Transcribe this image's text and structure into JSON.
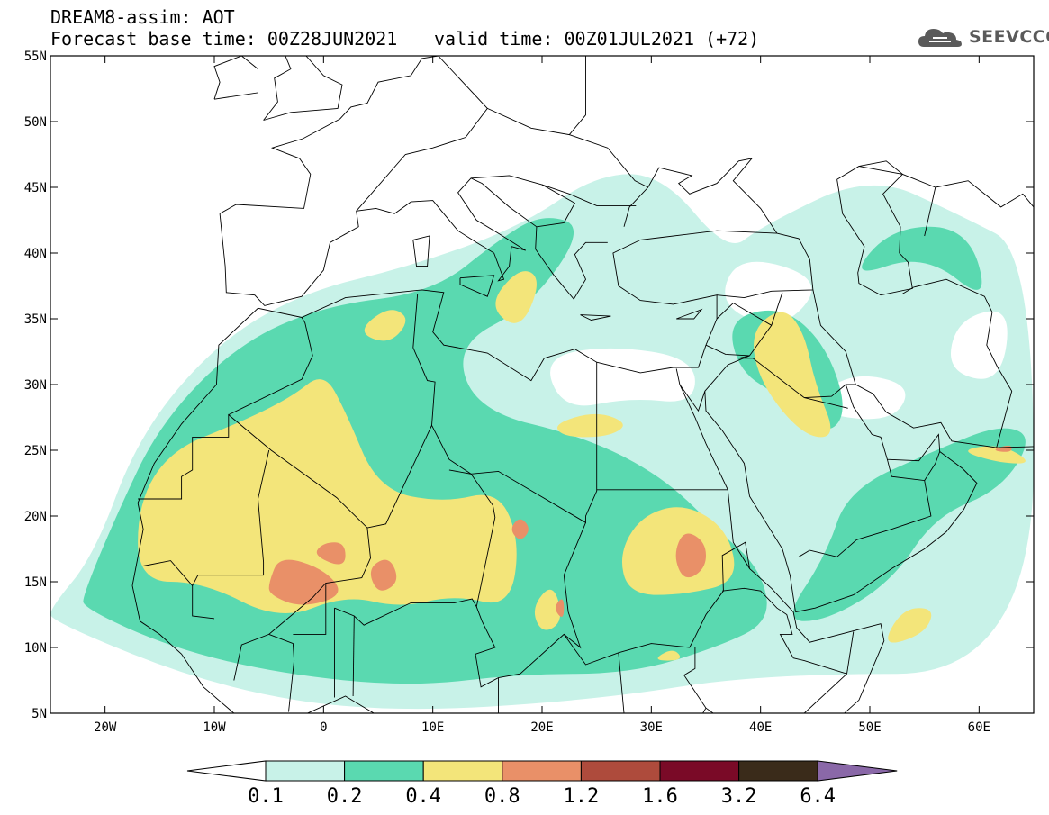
{
  "header": {
    "title": "DREAM8-assim: AOT",
    "base_time": "Forecast base time: 00Z28JUN2021",
    "valid_time": "valid time: 00Z01JUL2021 (+72)"
  },
  "logo": {
    "text": "SEEVCCC",
    "icon": "cloud-logo-icon"
  },
  "map": {
    "lon_range": [
      -25,
      65
    ],
    "lat_range": [
      5,
      55
    ],
    "lat_ticks": [
      {
        "v": 55,
        "label": "55N"
      },
      {
        "v": 50,
        "label": "50N"
      },
      {
        "v": 45,
        "label": "45N"
      },
      {
        "v": 40,
        "label": "40N"
      },
      {
        "v": 35,
        "label": "35N"
      },
      {
        "v": 30,
        "label": "30N"
      },
      {
        "v": 25,
        "label": "25N"
      },
      {
        "v": 20,
        "label": "20N"
      },
      {
        "v": 15,
        "label": "15N"
      },
      {
        "v": 10,
        "label": "10N"
      },
      {
        "v": 5,
        "label": "5N"
      }
    ],
    "lon_ticks": [
      {
        "v": -20,
        "label": "20W"
      },
      {
        "v": -10,
        "label": "10W"
      },
      {
        "v": 0,
        "label": "0"
      },
      {
        "v": 10,
        "label": "10E"
      },
      {
        "v": 20,
        "label": "20E"
      },
      {
        "v": 30,
        "label": "30E"
      },
      {
        "v": 40,
        "label": "40E"
      },
      {
        "v": 50,
        "label": "50E"
      },
      {
        "v": 60,
        "label": "60E"
      }
    ]
  },
  "colorbar": {
    "labels": [
      "0.1",
      "0.2",
      "0.4",
      "0.8",
      "1.2",
      "1.6",
      "3.2",
      "6.4"
    ],
    "colors": [
      "#ffffff",
      "#c8f2e8",
      "#5ad9b0",
      "#f3e57a",
      "#e99068",
      "#ae4b3c",
      "#7a0a27",
      "#3a2b1a",
      "#8a68a8"
    ]
  },
  "fields": {
    "colors": {
      "c1": "#c8f2e8",
      "c2": "#5ad9b0",
      "c3": "#f3e57a",
      "c4": "#e99068",
      "c5": "#ae4b3c"
    },
    "l1": [
      [
        [
          -25,
          13
        ],
        [
          -21,
          17
        ],
        [
          -17,
          26
        ],
        [
          -10,
          33
        ],
        [
          -2,
          37
        ],
        [
          8,
          39
        ],
        [
          18,
          42
        ],
        [
          25,
          46
        ],
        [
          31,
          46
        ],
        [
          37,
          40
        ],
        [
          40,
          42
        ],
        [
          50,
          46
        ],
        [
          58,
          43
        ],
        [
          65,
          40
        ],
        [
          65,
          8
        ],
        [
          40,
          8
        ],
        [
          25,
          6
        ],
        [
          5,
          5
        ],
        [
          -10,
          7
        ],
        [
          -25,
          12
        ]
      ]
    ],
    "l1_holes": [
      [
        [
          22,
          28
        ],
        [
          28,
          29
        ],
        [
          34,
          28.5
        ],
        [
          34,
          32
        ],
        [
          26,
          33
        ],
        [
          20,
          32
        ]
      ],
      [
        [
          44,
          28
        ],
        [
          52,
          27
        ],
        [
          54,
          30
        ],
        [
          48,
          31
        ]
      ],
      [
        [
          58,
          35
        ],
        [
          63,
          36
        ],
        [
          62,
          30
        ],
        [
          57,
          31
        ]
      ],
      [
        [
          36,
          36
        ],
        [
          42,
          34
        ],
        [
          46,
          38
        ],
        [
          38,
          40
        ]
      ]
    ],
    "l2": [
      [
        [
          -22,
          14
        ],
        [
          -19,
          20
        ],
        [
          -15,
          27
        ],
        [
          -8,
          33
        ],
        [
          0,
          36
        ],
        [
          10,
          37
        ],
        [
          16,
          41
        ],
        [
          20,
          43
        ],
        [
          24,
          42
        ],
        [
          19,
          36
        ],
        [
          12,
          33
        ],
        [
          14,
          28
        ],
        [
          24,
          26
        ],
        [
          31,
          23
        ],
        [
          36,
          19
        ],
        [
          40,
          16
        ],
        [
          41,
          12
        ],
        [
          36,
          10
        ],
        [
          28,
          8
        ],
        [
          18,
          8
        ],
        [
          8,
          7
        ],
        [
          -4,
          8
        ],
        [
          -14,
          10
        ],
        [
          -22,
          13
        ]
      ],
      [
        [
          37,
          35
        ],
        [
          42,
          36
        ],
        [
          46,
          33
        ],
        [
          48,
          28
        ],
        [
          46,
          26
        ],
        [
          42,
          29
        ],
        [
          38,
          31
        ]
      ],
      [
        [
          48,
          22
        ],
        [
          56,
          25
        ],
        [
          62,
          27
        ],
        [
          65,
          26
        ],
        [
          62,
          22
        ],
        [
          56,
          20
        ],
        [
          52,
          15
        ],
        [
          46,
          12
        ],
        [
          42,
          12
        ],
        [
          46,
          17
        ]
      ],
      [
        [
          48,
          38
        ],
        [
          55,
          40
        ],
        [
          61,
          36
        ],
        [
          59,
          42
        ],
        [
          52,
          42
        ]
      ],
      [
        [
          22,
          15
        ],
        [
          29,
          12
        ],
        [
          35,
          14
        ],
        [
          40,
          17
        ],
        [
          36,
          13
        ],
        [
          30,
          9
        ],
        [
          22,
          10
        ]
      ]
    ],
    "l3": [
      [
        [
          -17,
          15
        ],
        [
          -17,
          21
        ],
        [
          -14,
          25
        ],
        [
          -8,
          27
        ],
        [
          -3,
          29
        ],
        [
          0,
          31
        ],
        [
          2,
          28
        ],
        [
          5,
          22
        ],
        [
          11,
          21
        ],
        [
          16,
          22
        ],
        [
          18,
          18
        ],
        [
          17,
          13
        ],
        [
          12,
          14
        ],
        [
          7,
          13
        ],
        [
          2,
          14
        ],
        [
          -4,
          12
        ],
        [
          -11,
          15
        ]
      ],
      [
        [
          27,
          17
        ],
        [
          29,
          20
        ],
        [
          33,
          21
        ],
        [
          37,
          19
        ],
        [
          38,
          15
        ],
        [
          33,
          14
        ],
        [
          28,
          14
        ]
      ],
      [
        [
          39,
          34
        ],
        [
          42,
          36
        ],
        [
          44,
          34
        ],
        [
          45,
          30
        ],
        [
          47,
          26
        ],
        [
          44,
          26
        ],
        [
          40,
          30
        ]
      ],
      [
        [
          15,
          36
        ],
        [
          18,
          39
        ],
        [
          20,
          38
        ],
        [
          18,
          34
        ]
      ],
      [
        [
          3,
          34
        ],
        [
          6,
          36
        ],
        [
          8,
          35
        ],
        [
          6,
          33
        ]
      ],
      [
        [
          21,
          27
        ],
        [
          25,
          28
        ],
        [
          28,
          27
        ],
        [
          26,
          26
        ],
        [
          22,
          26
        ]
      ],
      [
        [
          -6,
          26
        ],
        [
          -3,
          28
        ],
        [
          -2,
          26
        ],
        [
          -4,
          24
        ]
      ],
      [
        [
          51,
          10
        ],
        [
          55,
          11
        ],
        [
          56,
          13
        ],
        [
          53,
          13
        ]
      ],
      [
        [
          58,
          25
        ],
        [
          62,
          24
        ],
        [
          65,
          24
        ],
        [
          62,
          25.5
        ]
      ],
      [
        [
          19,
          13
        ],
        [
          21,
          15
        ],
        [
          22,
          12
        ],
        [
          20,
          11
        ]
      ],
      [
        [
          30,
          9
        ],
        [
          32,
          10
        ],
        [
          33,
          9
        ]
      ]
    ],
    "l4": [
      [
        [
          -5,
          15
        ],
        [
          -4,
          17
        ],
        [
          0,
          16
        ],
        [
          2,
          14
        ],
        [
          -2,
          13
        ],
        [
          -5,
          14
        ]
      ],
      [
        [
          -1,
          17
        ],
        [
          0,
          18
        ],
        [
          2,
          18
        ],
        [
          2,
          16
        ]
      ],
      [
        [
          4,
          16
        ],
        [
          6,
          17
        ],
        [
          7,
          15
        ],
        [
          5,
          14
        ]
      ],
      [
        [
          32,
          17
        ],
        [
          33,
          19
        ],
        [
          35,
          18
        ],
        [
          35,
          16
        ],
        [
          33,
          15
        ]
      ],
      [
        [
          17,
          19
        ],
        [
          18,
          20
        ],
        [
          19,
          19
        ],
        [
          18,
          18
        ]
      ],
      [
        [
          21,
          13
        ],
        [
          22,
          14
        ],
        [
          22,
          12
        ]
      ],
      [
        [
          61,
          25
        ],
        [
          63,
          25.5
        ],
        [
          63,
          24.8
        ]
      ]
    ]
  }
}
